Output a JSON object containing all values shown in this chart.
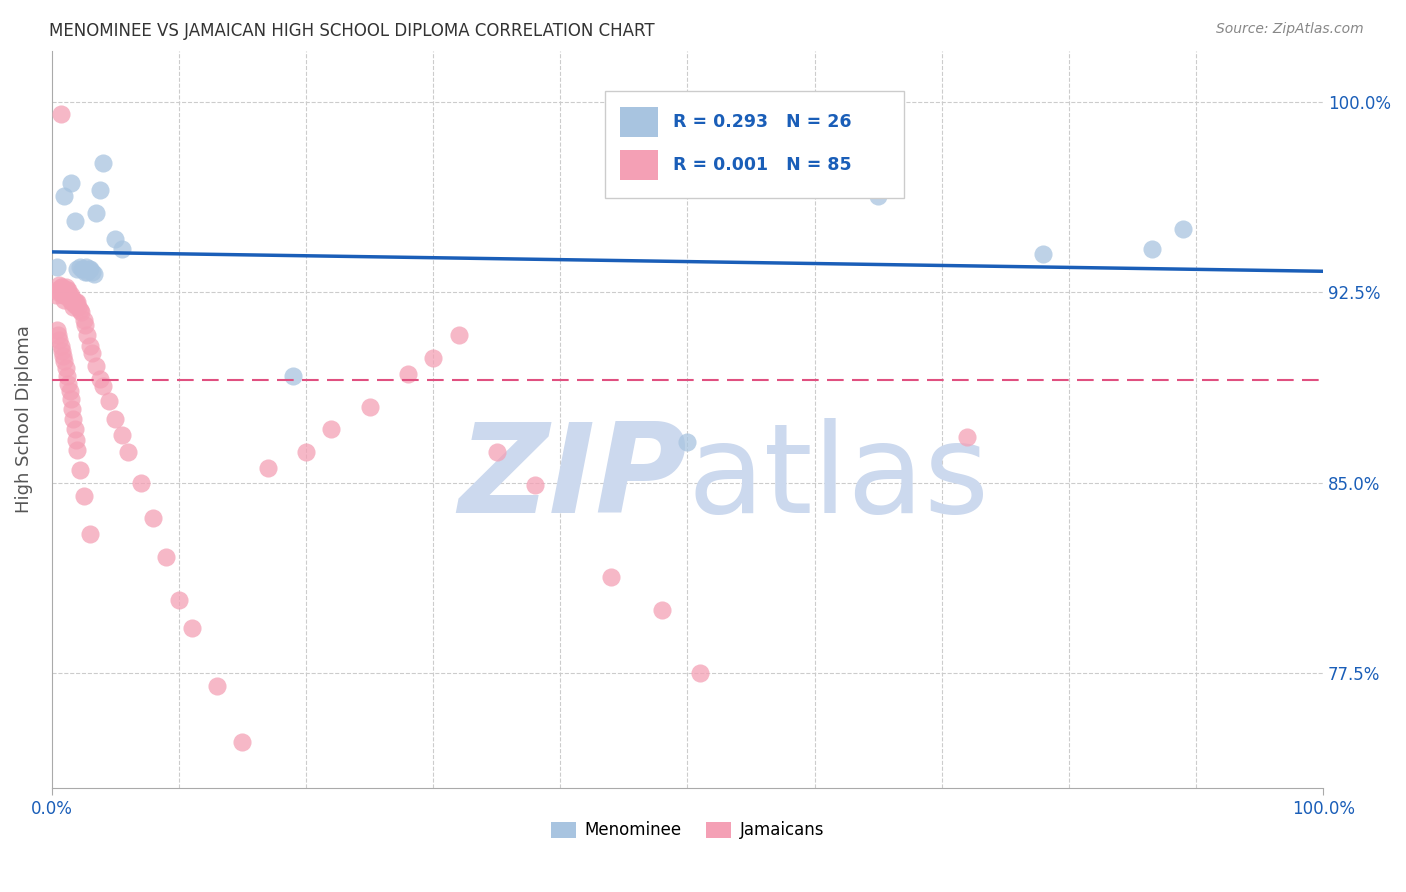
{
  "title": "MENOMINEE VS JAMAICAN HIGH SCHOOL DIPLOMA CORRELATION CHART",
  "source": "Source: ZipAtlas.com",
  "ylabel": "High School Diploma",
  "ytick_labels": [
    "77.5%",
    "85.0%",
    "92.5%",
    "100.0%"
  ],
  "ytick_values": [
    0.775,
    0.85,
    0.925,
    1.0
  ],
  "xlim": [
    0.0,
    1.0
  ],
  "ylim": [
    0.73,
    1.02
  ],
  "menominee_color": "#a8c4e0",
  "jamaican_color": "#f4a0b5",
  "menominee_line_color": "#1a5eb8",
  "jamaican_line_color": "#e05080",
  "background_color": "#ffffff",
  "watermark_color": "#ccd9ee",
  "menominee_x": [
    0.004,
    0.01,
    0.015,
    0.018,
    0.02,
    0.022,
    0.024,
    0.025,
    0.026,
    0.027,
    0.028,
    0.029,
    0.03,
    0.032,
    0.033,
    0.035,
    0.038,
    0.04,
    0.05,
    0.055,
    0.19,
    0.5,
    0.65,
    0.78,
    0.865,
    0.89
  ],
  "menominee_y": [
    0.935,
    0.963,
    0.968,
    0.953,
    0.934,
    0.935,
    0.934,
    0.934,
    0.933,
    0.935,
    0.933,
    0.934,
    0.934,
    0.933,
    0.932,
    0.956,
    0.965,
    0.976,
    0.946,
    0.942,
    0.892,
    0.866,
    0.963,
    0.94,
    0.942,
    0.95
  ],
  "jamaican_x": [
    0.003,
    0.004,
    0.005,
    0.006,
    0.007,
    0.007,
    0.008,
    0.008,
    0.009,
    0.009,
    0.01,
    0.01,
    0.011,
    0.011,
    0.012,
    0.012,
    0.013,
    0.013,
    0.014,
    0.014,
    0.015,
    0.015,
    0.016,
    0.016,
    0.017,
    0.017,
    0.018,
    0.018,
    0.019,
    0.019,
    0.02,
    0.021,
    0.022,
    0.023,
    0.025,
    0.026,
    0.028,
    0.03,
    0.032,
    0.035,
    0.038,
    0.04,
    0.045,
    0.05,
    0.055,
    0.06,
    0.07,
    0.08,
    0.09,
    0.1,
    0.11,
    0.13,
    0.15,
    0.17,
    0.2,
    0.22,
    0.25,
    0.28,
    0.3,
    0.32,
    0.35,
    0.38,
    0.44,
    0.48,
    0.51,
    0.72,
    0.004,
    0.005,
    0.006,
    0.007,
    0.008,
    0.009,
    0.01,
    0.011,
    0.012,
    0.013,
    0.014,
    0.015,
    0.016,
    0.017,
    0.018,
    0.019,
    0.02,
    0.022,
    0.025,
    0.03
  ],
  "jamaican_y": [
    0.924,
    0.926,
    0.925,
    0.928,
    0.927,
    0.995,
    0.927,
    0.926,
    0.925,
    0.924,
    0.924,
    0.922,
    0.927,
    0.925,
    0.926,
    0.924,
    0.926,
    0.924,
    0.923,
    0.922,
    0.923,
    0.924,
    0.921,
    0.922,
    0.921,
    0.919,
    0.921,
    0.92,
    0.921,
    0.92,
    0.921,
    0.919,
    0.918,
    0.917,
    0.914,
    0.912,
    0.908,
    0.904,
    0.901,
    0.896,
    0.891,
    0.888,
    0.882,
    0.875,
    0.869,
    0.862,
    0.85,
    0.836,
    0.821,
    0.804,
    0.793,
    0.77,
    0.748,
    0.856,
    0.862,
    0.871,
    0.88,
    0.893,
    0.899,
    0.908,
    0.862,
    0.849,
    0.813,
    0.8,
    0.775,
    0.868,
    0.91,
    0.908,
    0.906,
    0.904,
    0.902,
    0.9,
    0.898,
    0.895,
    0.892,
    0.889,
    0.886,
    0.883,
    0.879,
    0.875,
    0.871,
    0.867,
    0.863,
    0.855,
    0.845,
    0.83
  ]
}
